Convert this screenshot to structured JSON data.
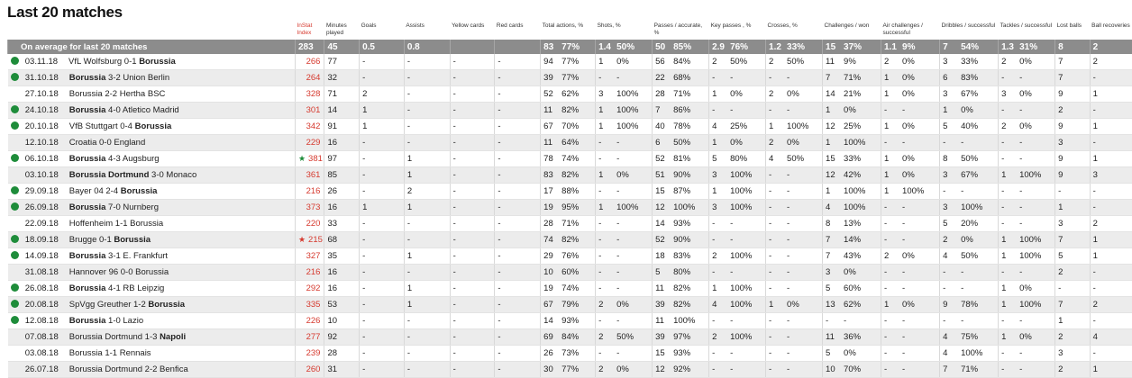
{
  "title": "Last 20 matches",
  "headers": [
    "",
    "",
    "InStat Index",
    "Minutes played",
    "Goals",
    "Assists",
    "Yellow cards",
    "Red cards",
    "Total actions, %",
    "Shots, %",
    "Passes / accurate, %",
    "Key passes , %",
    "Crosses, %",
    "Challenges / won",
    "Air challenges / successful",
    "Dribbles / successful",
    "Tackles / successful",
    "Lost balls",
    "Ball recoveries"
  ],
  "average": {
    "label": "On average for last 20 matches",
    "instat": "283",
    "minutes": "45",
    "goals": "0.5",
    "assists": "0.8",
    "yellow": "",
    "red": "",
    "total": [
      "83",
      "77%"
    ],
    "shots": [
      "1.4",
      "50%"
    ],
    "passes": [
      "50",
      "85%"
    ],
    "key": [
      "2.9",
      "76%"
    ],
    "crosses": [
      "1.2",
      "33%"
    ],
    "challenges": [
      "15",
      "37%"
    ],
    "air": [
      "1.1",
      "9%"
    ],
    "dribbles": [
      "7",
      "54%"
    ],
    "tackles": [
      "1.3",
      "31%"
    ],
    "lost": "8",
    "recov": "2"
  },
  "rows": [
    {
      "win": true,
      "star": "",
      "date": "03.11.18",
      "match": [
        [
          "VfL Wolfsburg 0-1 ",
          false
        ],
        [
          "Borussia",
          true
        ]
      ],
      "instat": "266",
      "minutes": "77",
      "goals": "-",
      "assists": "-",
      "yellow": "-",
      "red": "-",
      "total": [
        "94",
        "77%"
      ],
      "shots": [
        "1",
        "0%"
      ],
      "passes": [
        "56",
        "84%"
      ],
      "key": [
        "2",
        "50%"
      ],
      "crosses": [
        "2",
        "50%"
      ],
      "challenges": [
        "11",
        "9%"
      ],
      "air": [
        "2",
        "0%"
      ],
      "dribbles": [
        "3",
        "33%"
      ],
      "tackles": [
        "2",
        "0%"
      ],
      "lost": "7",
      "recov": "2"
    },
    {
      "win": true,
      "star": "",
      "date": "31.10.18",
      "match": [
        [
          "Borussia",
          true
        ],
        [
          " 3-2 Union Berlin",
          false
        ]
      ],
      "instat": "264",
      "minutes": "32",
      "goals": "-",
      "assists": "-",
      "yellow": "-",
      "red": "-",
      "total": [
        "39",
        "77%"
      ],
      "shots": [
        "-",
        "-"
      ],
      "passes": [
        "22",
        "68%"
      ],
      "key": [
        "-",
        "-"
      ],
      "crosses": [
        "-",
        "-"
      ],
      "challenges": [
        "7",
        "71%"
      ],
      "air": [
        "1",
        "0%"
      ],
      "dribbles": [
        "6",
        "83%"
      ],
      "tackles": [
        "-",
        "-"
      ],
      "lost": "7",
      "recov": "-"
    },
    {
      "win": false,
      "star": "",
      "date": "27.10.18",
      "match": [
        [
          "Borussia 2-2 Hertha BSC",
          false
        ]
      ],
      "instat": "328",
      "minutes": "71",
      "goals": "2",
      "assists": "-",
      "yellow": "-",
      "red": "-",
      "total": [
        "52",
        "62%"
      ],
      "shots": [
        "3",
        "100%"
      ],
      "passes": [
        "28",
        "71%"
      ],
      "key": [
        "1",
        "0%"
      ],
      "crosses": [
        "2",
        "0%"
      ],
      "challenges": [
        "14",
        "21%"
      ],
      "air": [
        "1",
        "0%"
      ],
      "dribbles": [
        "3",
        "67%"
      ],
      "tackles": [
        "3",
        "0%"
      ],
      "lost": "9",
      "recov": "1"
    },
    {
      "win": true,
      "star": "",
      "date": "24.10.18",
      "match": [
        [
          "Borussia",
          true
        ],
        [
          " 4-0 Atletico Madrid",
          false
        ]
      ],
      "instat": "301",
      "minutes": "14",
      "goals": "1",
      "assists": "-",
      "yellow": "-",
      "red": "-",
      "total": [
        "11",
        "82%"
      ],
      "shots": [
        "1",
        "100%"
      ],
      "passes": [
        "7",
        "86%"
      ],
      "key": [
        "-",
        "-"
      ],
      "crosses": [
        "-",
        "-"
      ],
      "challenges": [
        "1",
        "0%"
      ],
      "air": [
        "-",
        "-"
      ],
      "dribbles": [
        "1",
        "0%"
      ],
      "tackles": [
        "-",
        "-"
      ],
      "lost": "2",
      "recov": "-"
    },
    {
      "win": true,
      "star": "",
      "date": "20.10.18",
      "match": [
        [
          "VfB Stuttgart 0-4 ",
          false
        ],
        [
          "Borussia",
          true
        ]
      ],
      "instat": "342",
      "minutes": "91",
      "goals": "1",
      "assists": "-",
      "yellow": "-",
      "red": "-",
      "total": [
        "67",
        "70%"
      ],
      "shots": [
        "1",
        "100%"
      ],
      "passes": [
        "40",
        "78%"
      ],
      "key": [
        "4",
        "25%"
      ],
      "crosses": [
        "1",
        "100%"
      ],
      "challenges": [
        "12",
        "25%"
      ],
      "air": [
        "1",
        "0%"
      ],
      "dribbles": [
        "5",
        "40%"
      ],
      "tackles": [
        "2",
        "0%"
      ],
      "lost": "9",
      "recov": "1"
    },
    {
      "win": false,
      "star": "",
      "date": "12.10.18",
      "match": [
        [
          "Croatia 0-0 England",
          false
        ]
      ],
      "instat": "229",
      "minutes": "16",
      "goals": "-",
      "assists": "-",
      "yellow": "-",
      "red": "-",
      "total": [
        "11",
        "64%"
      ],
      "shots": [
        "-",
        "-"
      ],
      "passes": [
        "6",
        "50%"
      ],
      "key": [
        "1",
        "0%"
      ],
      "crosses": [
        "2",
        "0%"
      ],
      "challenges": [
        "1",
        "100%"
      ],
      "air": [
        "-",
        "-"
      ],
      "dribbles": [
        "-",
        "-"
      ],
      "tackles": [
        "-",
        "-"
      ],
      "lost": "3",
      "recov": "-"
    },
    {
      "win": true,
      "star": "green",
      "date": "06.10.18",
      "match": [
        [
          "Borussia",
          true
        ],
        [
          " 4-3 Augsburg",
          false
        ]
      ],
      "instat": "381",
      "minutes": "97",
      "goals": "-",
      "assists": "1",
      "yellow": "-",
      "red": "-",
      "total": [
        "78",
        "74%"
      ],
      "shots": [
        "-",
        "-"
      ],
      "passes": [
        "52",
        "81%"
      ],
      "key": [
        "5",
        "80%"
      ],
      "crosses": [
        "4",
        "50%"
      ],
      "challenges": [
        "15",
        "33%"
      ],
      "air": [
        "1",
        "0%"
      ],
      "dribbles": [
        "8",
        "50%"
      ],
      "tackles": [
        "-",
        "-"
      ],
      "lost": "9",
      "recov": "1"
    },
    {
      "win": false,
      "star": "",
      "date": "03.10.18",
      "match": [
        [
          "Borussia Dortmund",
          true
        ],
        [
          " 3-0 Monaco",
          false
        ]
      ],
      "instat": "361",
      "minutes": "85",
      "goals": "-",
      "assists": "1",
      "yellow": "-",
      "red": "-",
      "total": [
        "83",
        "82%"
      ],
      "shots": [
        "1",
        "0%"
      ],
      "passes": [
        "51",
        "90%"
      ],
      "key": [
        "3",
        "100%"
      ],
      "crosses": [
        "-",
        "-"
      ],
      "challenges": [
        "12",
        "42%"
      ],
      "air": [
        "1",
        "0%"
      ],
      "dribbles": [
        "3",
        "67%"
      ],
      "tackles": [
        "1",
        "100%"
      ],
      "lost": "9",
      "recov": "3"
    },
    {
      "win": true,
      "star": "",
      "date": "29.09.18",
      "match": [
        [
          "Bayer 04 2-4 ",
          false
        ],
        [
          "Borussia",
          true
        ]
      ],
      "instat": "216",
      "minutes": "26",
      "goals": "-",
      "assists": "2",
      "yellow": "-",
      "red": "-",
      "total": [
        "17",
        "88%"
      ],
      "shots": [
        "-",
        "-"
      ],
      "passes": [
        "15",
        "87%"
      ],
      "key": [
        "1",
        "100%"
      ],
      "crosses": [
        "-",
        "-"
      ],
      "challenges": [
        "1",
        "100%"
      ],
      "air": [
        "1",
        "100%"
      ],
      "dribbles": [
        "-",
        "-"
      ],
      "tackles": [
        "-",
        "-"
      ],
      "lost": "-",
      "recov": "-"
    },
    {
      "win": true,
      "star": "",
      "date": "26.09.18",
      "match": [
        [
          "Borussia",
          true
        ],
        [
          " 7-0 Nurnberg",
          false
        ]
      ],
      "instat": "373",
      "minutes": "16",
      "goals": "1",
      "assists": "1",
      "yellow": "-",
      "red": "-",
      "total": [
        "19",
        "95%"
      ],
      "shots": [
        "1",
        "100%"
      ],
      "passes": [
        "12",
        "100%"
      ],
      "key": [
        "3",
        "100%"
      ],
      "crosses": [
        "-",
        "-"
      ],
      "challenges": [
        "4",
        "100%"
      ],
      "air": [
        "-",
        "-"
      ],
      "dribbles": [
        "3",
        "100%"
      ],
      "tackles": [
        "-",
        "-"
      ],
      "lost": "1",
      "recov": "-"
    },
    {
      "win": false,
      "star": "",
      "date": "22.09.18",
      "match": [
        [
          "Hoffenheim 1-1 Borussia",
          false
        ]
      ],
      "instat": "220",
      "minutes": "33",
      "goals": "-",
      "assists": "-",
      "yellow": "-",
      "red": "-",
      "total": [
        "28",
        "71%"
      ],
      "shots": [
        "-",
        "-"
      ],
      "passes": [
        "14",
        "93%"
      ],
      "key": [
        "-",
        "-"
      ],
      "crosses": [
        "-",
        "-"
      ],
      "challenges": [
        "8",
        "13%"
      ],
      "air": [
        "-",
        "-"
      ],
      "dribbles": [
        "5",
        "20%"
      ],
      "tackles": [
        "-",
        "-"
      ],
      "lost": "3",
      "recov": "2"
    },
    {
      "win": true,
      "star": "red",
      "date": "18.09.18",
      "match": [
        [
          "Brugge 0-1 ",
          false
        ],
        [
          "Borussia",
          true
        ]
      ],
      "instat": "215",
      "minutes": "68",
      "goals": "-",
      "assists": "-",
      "yellow": "-",
      "red": "-",
      "total": [
        "74",
        "82%"
      ],
      "shots": [
        "-",
        "-"
      ],
      "passes": [
        "52",
        "90%"
      ],
      "key": [
        "-",
        "-"
      ],
      "crosses": [
        "-",
        "-"
      ],
      "challenges": [
        "7",
        "14%"
      ],
      "air": [
        "-",
        "-"
      ],
      "dribbles": [
        "2",
        "0%"
      ],
      "tackles": [
        "1",
        "100%"
      ],
      "lost": "7",
      "recov": "1"
    },
    {
      "win": true,
      "star": "",
      "date": "14.09.18",
      "match": [
        [
          "Borussia",
          true
        ],
        [
          " 3-1 E. Frankfurt",
          false
        ]
      ],
      "instat": "327",
      "minutes": "35",
      "goals": "-",
      "assists": "1",
      "yellow": "-",
      "red": "-",
      "total": [
        "29",
        "76%"
      ],
      "shots": [
        "-",
        "-"
      ],
      "passes": [
        "18",
        "83%"
      ],
      "key": [
        "2",
        "100%"
      ],
      "crosses": [
        "-",
        "-"
      ],
      "challenges": [
        "7",
        "43%"
      ],
      "air": [
        "2",
        "0%"
      ],
      "dribbles": [
        "4",
        "50%"
      ],
      "tackles": [
        "1",
        "100%"
      ],
      "lost": "5",
      "recov": "1"
    },
    {
      "win": false,
      "star": "",
      "date": "31.08.18",
      "match": [
        [
          "Hannover 96 0-0 Borussia",
          false
        ]
      ],
      "instat": "216",
      "minutes": "16",
      "goals": "-",
      "assists": "-",
      "yellow": "-",
      "red": "-",
      "total": [
        "10",
        "60%"
      ],
      "shots": [
        "-",
        "-"
      ],
      "passes": [
        "5",
        "80%"
      ],
      "key": [
        "-",
        "-"
      ],
      "crosses": [
        "-",
        "-"
      ],
      "challenges": [
        "3",
        "0%"
      ],
      "air": [
        "-",
        "-"
      ],
      "dribbles": [
        "-",
        "-"
      ],
      "tackles": [
        "-",
        "-"
      ],
      "lost": "2",
      "recov": "-"
    },
    {
      "win": true,
      "star": "",
      "date": "26.08.18",
      "match": [
        [
          "Borussia",
          true
        ],
        [
          " 4-1 RB Leipzig",
          false
        ]
      ],
      "instat": "292",
      "minutes": "16",
      "goals": "-",
      "assists": "1",
      "yellow": "-",
      "red": "-",
      "total": [
        "19",
        "74%"
      ],
      "shots": [
        "-",
        "-"
      ],
      "passes": [
        "11",
        "82%"
      ],
      "key": [
        "1",
        "100%"
      ],
      "crosses": [
        "-",
        "-"
      ],
      "challenges": [
        "5",
        "60%"
      ],
      "air": [
        "-",
        "-"
      ],
      "dribbles": [
        "-",
        "-"
      ],
      "tackles": [
        "1",
        "0%"
      ],
      "lost": "-",
      "recov": "-"
    },
    {
      "win": true,
      "star": "",
      "date": "20.08.18",
      "match": [
        [
          "SpVgg Greuther 1-2 ",
          false
        ],
        [
          "Borussia",
          true
        ]
      ],
      "instat": "335",
      "minutes": "53",
      "goals": "-",
      "assists": "1",
      "yellow": "-",
      "red": "-",
      "total": [
        "67",
        "79%"
      ],
      "shots": [
        "2",
        "0%"
      ],
      "passes": [
        "39",
        "82%"
      ],
      "key": [
        "4",
        "100%"
      ],
      "crosses": [
        "1",
        "0%"
      ],
      "challenges": [
        "13",
        "62%"
      ],
      "air": [
        "1",
        "0%"
      ],
      "dribbles": [
        "9",
        "78%"
      ],
      "tackles": [
        "1",
        "100%"
      ],
      "lost": "7",
      "recov": "2"
    },
    {
      "win": true,
      "star": "",
      "date": "12.08.18",
      "match": [
        [
          "Borussia",
          true
        ],
        [
          " 1-0 Lazio",
          false
        ]
      ],
      "instat": "226",
      "minutes": "10",
      "goals": "-",
      "assists": "-",
      "yellow": "-",
      "red": "-",
      "total": [
        "14",
        "93%"
      ],
      "shots": [
        "-",
        "-"
      ],
      "passes": [
        "11",
        "100%"
      ],
      "key": [
        "-",
        "-"
      ],
      "crosses": [
        "-",
        "-"
      ],
      "challenges": [
        "-",
        "-"
      ],
      "air": [
        "-",
        "-"
      ],
      "dribbles": [
        "-",
        "-"
      ],
      "tackles": [
        "-",
        "-"
      ],
      "lost": "1",
      "recov": "-"
    },
    {
      "win": false,
      "star": "",
      "date": "07.08.18",
      "match": [
        [
          "Borussia Dortmund 1-3 ",
          false
        ],
        [
          "Napoli",
          true
        ]
      ],
      "instat": "277",
      "minutes": "92",
      "goals": "-",
      "assists": "-",
      "yellow": "-",
      "red": "-",
      "total": [
        "69",
        "84%"
      ],
      "shots": [
        "2",
        "50%"
      ],
      "passes": [
        "39",
        "97%"
      ],
      "key": [
        "2",
        "100%"
      ],
      "crosses": [
        "-",
        "-"
      ],
      "challenges": [
        "11",
        "36%"
      ],
      "air": [
        "-",
        "-"
      ],
      "dribbles": [
        "4",
        "75%"
      ],
      "tackles": [
        "1",
        "0%"
      ],
      "lost": "2",
      "recov": "4"
    },
    {
      "win": false,
      "star": "",
      "date": "03.08.18",
      "match": [
        [
          "Borussia 1-1 Rennais",
          false
        ]
      ],
      "instat": "239",
      "minutes": "28",
      "goals": "-",
      "assists": "-",
      "yellow": "-",
      "red": "-",
      "total": [
        "26",
        "73%"
      ],
      "shots": [
        "-",
        "-"
      ],
      "passes": [
        "15",
        "93%"
      ],
      "key": [
        "-",
        "-"
      ],
      "crosses": [
        "-",
        "-"
      ],
      "challenges": [
        "5",
        "0%"
      ],
      "air": [
        "-",
        "-"
      ],
      "dribbles": [
        "4",
        "100%"
      ],
      "tackles": [
        "-",
        "-"
      ],
      "lost": "3",
      "recov": "-"
    },
    {
      "win": false,
      "star": "",
      "date": "26.07.18",
      "match": [
        [
          "Borussia Dortmund 2-2 Benfica",
          false
        ]
      ],
      "instat": "260",
      "minutes": "31",
      "goals": "-",
      "assists": "-",
      "yellow": "-",
      "red": "-",
      "total": [
        "30",
        "77%"
      ],
      "shots": [
        "2",
        "0%"
      ],
      "passes": [
        "12",
        "92%"
      ],
      "key": [
        "-",
        "-"
      ],
      "crosses": [
        "-",
        "-"
      ],
      "challenges": [
        "10",
        "70%"
      ],
      "air": [
        "-",
        "-"
      ],
      "dribbles": [
        "7",
        "71%"
      ],
      "tackles": [
        "-",
        "-"
      ],
      "lost": "2",
      "recov": "1"
    }
  ]
}
